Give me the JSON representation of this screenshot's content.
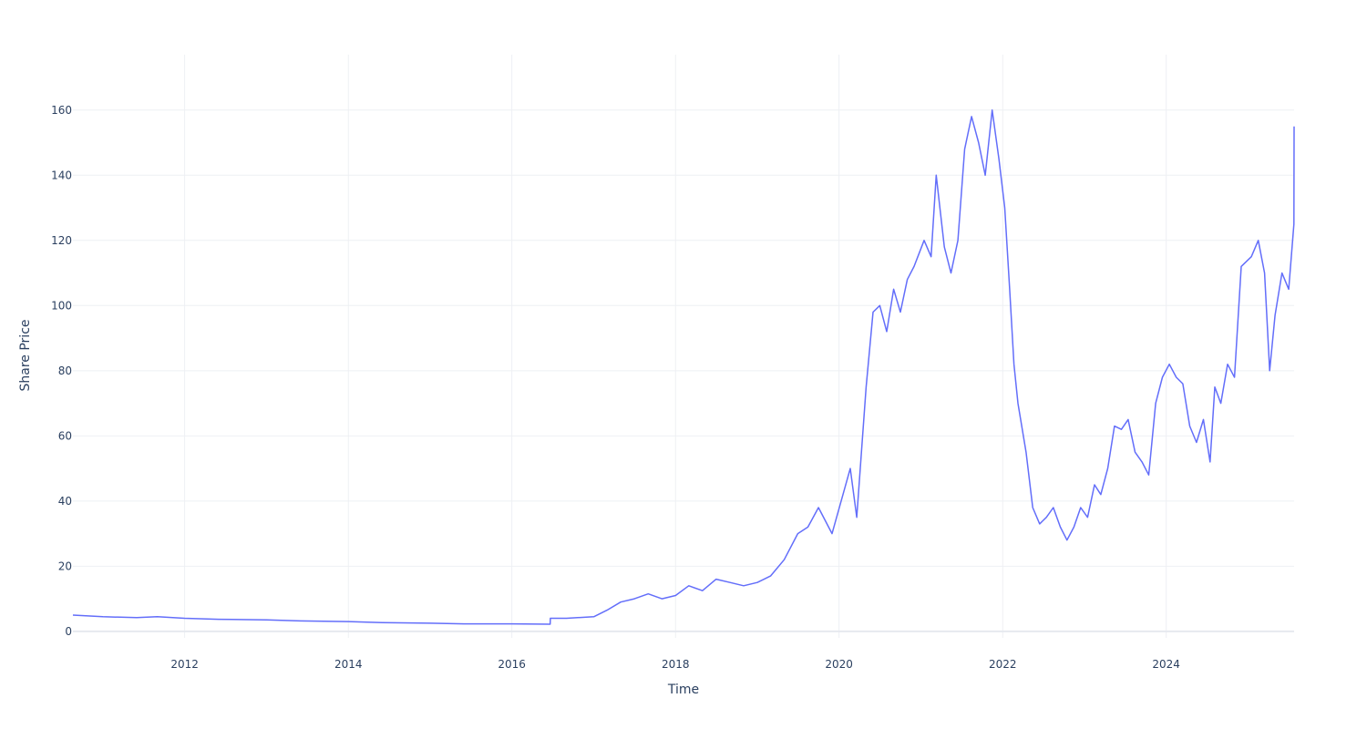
{
  "chart_data": {
    "type": "line",
    "xlabel": "Time",
    "ylabel": "Share Price",
    "xlim": [
      "2010-08-20",
      "2025-07-25"
    ],
    "ylim": [
      -2,
      177
    ],
    "x_ticks": [
      "2012",
      "2014",
      "2016",
      "2018",
      "2020",
      "2022",
      "2024"
    ],
    "y_ticks": [
      0,
      20,
      40,
      60,
      80,
      100,
      120,
      140,
      160
    ],
    "grid": true,
    "legend": "none",
    "line_color": "#636efa",
    "series": [
      {
        "x": [
          "2010-08-20",
          "2011-01-01",
          "2011-06-01",
          "2011-09-01",
          "2012-01-01",
          "2012-06-01",
          "2013-01-01",
          "2013-06-01",
          "2014-01-01",
          "2014-06-01",
          "2015-01-01",
          "2015-06-01",
          "2016-01-01",
          "2016-06-20",
          "2016-06-21",
          "2016-09-01",
          "2017-01-01",
          "2017-03-01",
          "2017-05-01",
          "2017-07-01",
          "2017-09-01",
          "2017-11-01",
          "2018-01-01",
          "2018-03-01",
          "2018-05-01",
          "2018-07-01",
          "2018-09-01",
          "2018-11-01",
          "2019-01-01",
          "2019-03-01",
          "2019-05-01",
          "2019-07-01",
          "2019-08-15",
          "2019-10-01",
          "2019-12-01",
          "2020-02-20",
          "2020-03-20",
          "2020-05-01",
          "2020-06-01",
          "2020-07-01",
          "2020-08-01",
          "2020-09-01",
          "2020-10-01",
          "2020-11-01",
          "2020-12-01",
          "2021-01-15",
          "2021-02-15",
          "2021-03-10",
          "2021-04-15",
          "2021-05-15",
          "2021-06-15",
          "2021-07-15",
          "2021-08-15",
          "2021-09-15",
          "2021-10-15",
          "2021-11-15",
          "2021-12-15",
          "2022-01-10",
          "2022-02-01",
          "2022-02-20",
          "2022-03-10",
          "2022-04-15",
          "2022-05-15",
          "2022-06-15",
          "2022-07-15",
          "2022-08-15",
          "2022-09-15",
          "2022-10-15",
          "2022-11-15",
          "2022-12-15",
          "2023-01-15",
          "2023-02-15",
          "2023-03-15",
          "2023-04-15",
          "2023-05-15",
          "2023-06-15",
          "2023-07-15",
          "2023-08-15",
          "2023-09-15",
          "2023-10-15",
          "2023-11-15",
          "2023-12-15",
          "2024-01-15",
          "2024-02-15",
          "2024-03-15",
          "2024-04-15",
          "2024-05-15",
          "2024-06-15",
          "2024-07-15",
          "2024-08-05",
          "2024-09-01",
          "2024-10-01",
          "2024-11-01",
          "2024-12-01",
          "2025-01-15",
          "2025-02-15",
          "2025-03-15",
          "2025-04-07",
          "2025-05-01",
          "2025-06-01",
          "2025-07-01",
          "2025-07-24",
          "2025-07-25"
        ],
        "y": [
          5,
          4.5,
          4.2,
          4.5,
          4,
          3.7,
          3.5,
          3.2,
          3,
          2.7,
          2.5,
          2.3,
          2.3,
          2.2,
          4,
          4,
          4.5,
          6.5,
          9,
          10,
          11.5,
          10,
          11,
          14,
          12.5,
          16,
          15,
          14,
          15,
          17,
          22,
          30,
          32,
          38,
          30,
          50,
          35,
          75,
          98,
          100,
          92,
          105,
          98,
          108,
          112,
          120,
          115,
          140,
          118,
          110,
          120,
          148,
          158,
          150,
          140,
          160,
          145,
          130,
          105,
          82,
          70,
          55,
          38,
          33,
          35,
          38,
          32,
          28,
          32,
          38,
          35,
          45,
          42,
          50,
          63,
          62,
          65,
          55,
          52,
          48,
          70,
          78,
          82,
          78,
          76,
          63,
          58,
          65,
          52,
          75,
          70,
          82,
          78,
          112,
          115,
          120,
          110,
          80,
          97,
          110,
          105,
          125,
          155
        ]
      }
    ]
  }
}
